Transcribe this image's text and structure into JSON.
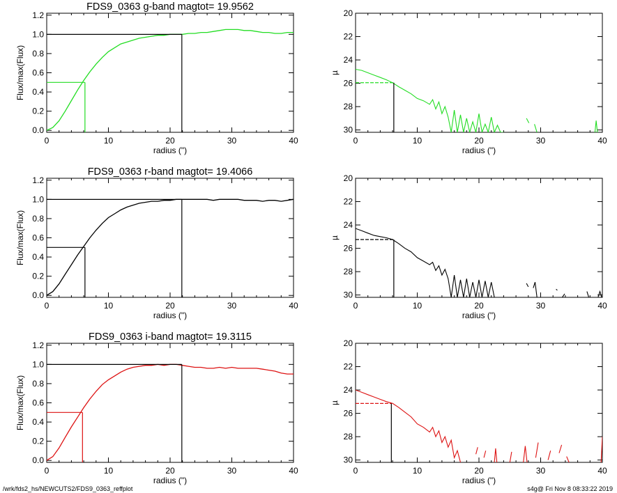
{
  "footer": {
    "path": "/wrk/fds2_hs/NEWCUTS2/FDS9_0363_reffplot",
    "stamp": "s4g@  Fri Nov  8 08:33:22 2019"
  },
  "colors": {
    "g": "#22dd22",
    "r": "#000000",
    "i": "#dd1111",
    "axis": "#000000"
  },
  "chart_data": [
    {
      "type": "line",
      "id": "g-growth",
      "title": "FDS9_0363 g-band  magtot=      19.9562",
      "xlabel": "radius (\")",
      "ylabel": "Flux/max(Flux)",
      "xlim": [
        0,
        40
      ],
      "ylim": [
        -0.02,
        1.22
      ],
      "xticks": [
        "0",
        "10",
        "20",
        "30",
        "40"
      ],
      "yticks": [
        "0.0",
        "0.2",
        "0.4",
        "0.6",
        "0.8",
        "1.0",
        "1.2"
      ],
      "series_color": "g",
      "x": [
        0,
        1,
        2,
        3,
        4,
        5,
        6,
        7,
        8,
        9,
        10,
        11,
        12,
        13,
        14,
        15,
        16,
        17,
        18,
        19,
        20,
        21,
        22,
        23,
        24,
        25,
        26,
        27,
        28,
        29,
        30,
        31,
        32,
        33,
        34,
        35,
        36,
        37,
        38,
        39,
        40
      ],
      "y": [
        0.0,
        0.03,
        0.1,
        0.2,
        0.31,
        0.42,
        0.52,
        0.61,
        0.69,
        0.76,
        0.82,
        0.86,
        0.9,
        0.92,
        0.94,
        0.96,
        0.97,
        0.98,
        0.99,
        0.99,
        1.0,
        1.0,
        1.0,
        1.01,
        1.01,
        1.02,
        1.02,
        1.03,
        1.04,
        1.05,
        1.05,
        1.05,
        1.04,
        1.04,
        1.03,
        1.02,
        1.02,
        1.01,
        1.01,
        1.02,
        1.02
      ],
      "half_radius": 6.2,
      "half_flux": 0.5,
      "total_radius": 21.9,
      "total_flux": 1.0
    },
    {
      "type": "line",
      "id": "g-profile",
      "xlabel": "radius (\")",
      "ylabel": "µ",
      "xlim": [
        0,
        40
      ],
      "ylim": [
        30.2,
        20
      ],
      "yreversed": true,
      "xticks": [
        "0",
        "10",
        "20",
        "30",
        "40"
      ],
      "yticks": [
        "20",
        "22",
        "24",
        "26",
        "28",
        "30"
      ],
      "series_color": "g",
      "segments": [
        {
          "x": [
            0,
            1,
            2,
            3,
            4,
            5,
            6,
            7,
            8,
            9,
            10,
            11,
            12,
            12.5,
            13,
            13.5,
            14,
            14.5,
            15,
            15.5,
            16,
            16.5,
            17,
            17.5,
            18,
            18.5,
            19,
            19.5,
            20,
            20.5,
            21,
            21.5,
            22,
            22.5,
            23,
            23.5,
            24
          ],
          "y": [
            24.8,
            24.9,
            25.1,
            25.3,
            25.5,
            25.7,
            25.95,
            26.3,
            26.6,
            26.9,
            27.3,
            27.5,
            27.8,
            27.4,
            28.2,
            27.6,
            28.6,
            28.0,
            28.9,
            30.2,
            28.3,
            30.2,
            28.7,
            30.2,
            29.0,
            30.2,
            29.3,
            30.2,
            28.6,
            30.2,
            29.5,
            30.2,
            28.9,
            30.2,
            29.6,
            30.2,
            30.2
          ]
        },
        {
          "x": [
            27.7,
            28.1
          ],
          "y": [
            29.0,
            29.4
          ]
        },
        {
          "x": [
            29.0,
            29.4
          ],
          "y": [
            29.5,
            30.2
          ]
        },
        {
          "x": [
            38.8,
            39.0,
            39.2
          ],
          "y": [
            30.2,
            29.2,
            30.2
          ]
        }
      ],
      "dashed": {
        "x": [
          0,
          6.2
        ],
        "y": [
          25.95,
          25.95
        ]
      },
      "half_radius": 6.2,
      "half_mu": 25.95
    },
    {
      "type": "line",
      "id": "r-growth",
      "title": "FDS9_0363 r-band  magtot=      19.4066",
      "xlabel": "radius (\")",
      "ylabel": "Flux/max(Flux)",
      "xlim": [
        0,
        40
      ],
      "ylim": [
        -0.02,
        1.22
      ],
      "xticks": [
        "0",
        "10",
        "20",
        "30",
        "40"
      ],
      "yticks": [
        "0.0",
        "0.2",
        "0.4",
        "0.6",
        "0.8",
        "1.0",
        "1.2"
      ],
      "series_color": "r",
      "x": [
        0,
        1,
        2,
        3,
        4,
        5,
        6,
        7,
        8,
        9,
        10,
        11,
        12,
        13,
        14,
        15,
        16,
        17,
        18,
        19,
        20,
        21,
        22,
        23,
        24,
        25,
        26,
        27,
        28,
        29,
        30,
        31,
        32,
        33,
        34,
        35,
        36,
        37,
        38,
        39,
        40
      ],
      "y": [
        0.0,
        0.04,
        0.12,
        0.22,
        0.32,
        0.42,
        0.51,
        0.6,
        0.68,
        0.75,
        0.81,
        0.85,
        0.89,
        0.92,
        0.94,
        0.96,
        0.97,
        0.98,
        0.98,
        0.99,
        0.99,
        1.0,
        1.0,
        1.0,
        1.0,
        1.0,
        1.0,
        0.99,
        1.0,
        1.0,
        1.0,
        1.0,
        0.99,
        0.99,
        0.99,
        0.98,
        0.99,
        0.99,
        0.98,
        0.99,
        1.0
      ],
      "half_radius": 6.2,
      "half_flux": 0.5,
      "total_radius": 21.9,
      "total_flux": 1.0
    },
    {
      "type": "line",
      "id": "r-profile",
      "xlabel": "radius (\")",
      "ylabel": "µ",
      "xlim": [
        0,
        40
      ],
      "ylim": [
        30.2,
        20
      ],
      "yreversed": true,
      "xticks": [
        "0",
        "10",
        "20",
        "30",
        "40"
      ],
      "yticks": [
        "20",
        "22",
        "24",
        "26",
        "28",
        "30"
      ],
      "series_color": "r",
      "segments": [
        {
          "x": [
            0,
            1,
            2,
            3,
            4,
            5,
            6,
            7,
            8,
            9,
            10,
            11,
            12,
            12.5,
            13,
            13.5,
            14,
            14.5,
            15,
            15.5,
            16,
            16.5,
            17,
            17.5,
            18,
            18.5,
            19,
            19.5,
            20,
            20.5,
            21,
            21.5,
            22,
            22.5
          ],
          "y": [
            24.3,
            24.5,
            24.7,
            24.9,
            25.0,
            25.1,
            25.25,
            25.6,
            26.0,
            26.3,
            26.8,
            27.1,
            27.4,
            27.2,
            27.9,
            27.5,
            28.3,
            27.8,
            28.6,
            30.2,
            28.3,
            30.2,
            28.7,
            30.2,
            28.6,
            30.2,
            28.9,
            30.2,
            28.7,
            30.2,
            28.8,
            30.2,
            28.9,
            30.2
          ]
        },
        {
          "x": [
            27.7,
            28.0
          ],
          "y": [
            29.0,
            29.3
          ]
        },
        {
          "x": [
            28.8,
            29.1,
            29.4
          ],
          "y": [
            29.4,
            28.9,
            30.2
          ]
        },
        {
          "x": [
            32.5,
            32.7
          ],
          "y": [
            29.5,
            29.6
          ]
        },
        {
          "x": [
            33.5,
            33.9
          ],
          "y": [
            30.2,
            29.9
          ]
        },
        {
          "x": [
            37.5,
            37.8
          ],
          "y": [
            29.7,
            30.2
          ]
        },
        {
          "x": [
            39.3,
            39.6,
            39.9
          ],
          "y": [
            30.2,
            29.7,
            30.2
          ]
        }
      ],
      "dashed": {
        "x": [
          0,
          6.2
        ],
        "y": [
          25.25,
          25.25
        ]
      },
      "half_radius": 6.2,
      "half_mu": 25.25
    },
    {
      "type": "line",
      "id": "i-growth",
      "title": "FDS9_0363 i-band  magtot=      19.3115",
      "xlabel": "radius (\")",
      "ylabel": "Flux/max(Flux)",
      "xlim": [
        0,
        40
      ],
      "ylim": [
        -0.02,
        1.22
      ],
      "xticks": [
        "0",
        "10",
        "20",
        "30",
        "40"
      ],
      "yticks": [
        "0.0",
        "0.2",
        "0.4",
        "0.6",
        "0.8",
        "1.0",
        "1.2"
      ],
      "series_color": "i",
      "x": [
        0,
        1,
        2,
        3,
        4,
        5,
        6,
        7,
        8,
        9,
        10,
        11,
        12,
        13,
        14,
        15,
        16,
        17,
        18,
        19,
        20,
        21,
        22,
        23,
        24,
        25,
        26,
        27,
        28,
        29,
        30,
        31,
        32,
        33,
        34,
        35,
        36,
        37,
        38,
        39,
        40
      ],
      "y": [
        0.0,
        0.04,
        0.13,
        0.24,
        0.35,
        0.45,
        0.55,
        0.64,
        0.72,
        0.79,
        0.84,
        0.88,
        0.92,
        0.95,
        0.97,
        0.98,
        0.99,
        0.99,
        1.0,
        0.99,
        1.0,
        1.0,
        0.99,
        0.98,
        0.97,
        0.97,
        0.96,
        0.96,
        0.97,
        0.96,
        0.97,
        0.96,
        0.96,
        0.96,
        0.96,
        0.95,
        0.94,
        0.93,
        0.91,
        0.9,
        0.9
      ],
      "half_radius": 5.8,
      "half_flux": 0.5,
      "total_radius": 21.9,
      "total_flux": 1.0
    },
    {
      "type": "line",
      "id": "i-profile",
      "xlabel": "radius (\")",
      "ylabel": "µ",
      "xlim": [
        0,
        40
      ],
      "ylim": [
        30.2,
        20
      ],
      "yreversed": true,
      "xticks": [
        "0",
        "10",
        "20",
        "30",
        "40"
      ],
      "yticks": [
        "20",
        "22",
        "24",
        "26",
        "28",
        "30"
      ],
      "series_color": "i",
      "segments": [
        {
          "x": [
            0,
            1,
            2,
            3,
            4,
            5,
            6,
            7,
            8,
            9,
            10,
            11,
            12,
            12.5,
            13,
            13.5,
            14,
            14.5,
            15,
            15.5,
            16,
            16.5,
            17
          ],
          "y": [
            24.0,
            24.2,
            24.4,
            24.6,
            24.8,
            25.0,
            25.15,
            25.5,
            25.9,
            26.3,
            26.9,
            27.2,
            27.6,
            27.2,
            28.0,
            27.5,
            28.5,
            28.0,
            28.9,
            28.3,
            29.8,
            29.2,
            30.2
          ]
        },
        {
          "x": [
            19.5,
            19.8
          ],
          "y": [
            29.5,
            28.9
          ]
        },
        {
          "x": [
            20.8,
            21.1
          ],
          "y": [
            29.8,
            29.2
          ]
        },
        {
          "x": [
            22.5,
            22.7,
            22.9
          ],
          "y": [
            30.2,
            29.0,
            30.2
          ]
        },
        {
          "x": [
            25.0,
            25.3
          ],
          "y": [
            30.2,
            29.3
          ]
        },
        {
          "x": [
            27.2,
            27.5,
            27.8
          ],
          "y": [
            30.2,
            28.8,
            30.2
          ]
        },
        {
          "x": [
            29.2,
            29.6
          ],
          "y": [
            29.8,
            28.5
          ]
        },
        {
          "x": [
            31.2,
            31.6
          ],
          "y": [
            30.0,
            29.2
          ]
        },
        {
          "x": [
            33.0,
            33.4
          ],
          "y": [
            29.4,
            28.7
          ]
        },
        {
          "x": [
            34.2,
            34.6
          ],
          "y": [
            29.7,
            30.2
          ]
        },
        {
          "x": [
            39.8,
            40.0
          ],
          "y": [
            30.2,
            28.0
          ]
        }
      ],
      "dashed": {
        "x": [
          0,
          5.8
        ],
        "y": [
          25.15,
          25.15
        ]
      },
      "half_radius": 5.8,
      "half_mu": 25.15
    }
  ]
}
